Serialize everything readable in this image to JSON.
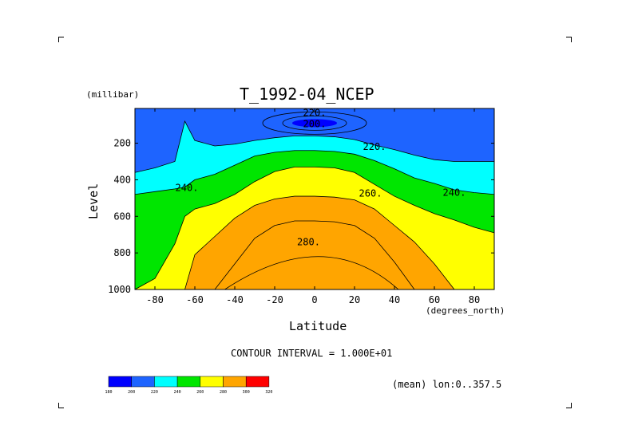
{
  "chart_data": {
    "type": "heatmap",
    "title": "T_1992-04_NCEP",
    "xlabel": "Latitude",
    "ylabel": "Level",
    "x_units": "(degrees_north)",
    "y_units": "(millibar)",
    "xlim": [
      -90,
      90
    ],
    "ylim": [
      1000,
      10
    ],
    "y_reversed": true,
    "x_ticks": [
      "-80",
      "-60",
      "-40",
      "-20",
      "0",
      "20",
      "40",
      "60",
      "80"
    ],
    "y_ticks": [
      "200",
      "400",
      "600",
      "800",
      "1000"
    ],
    "contour_interval_text": "CONTOUR INTERVAL = 1.000E+01",
    "footer_text": "(mean) lon:0..357.5",
    "contour_labels": [
      {
        "text": "220.",
        "lat": 0,
        "level": 35
      },
      {
        "text": "200.",
        "lat": 0,
        "level": 95
      },
      {
        "text": "220.",
        "lat": 30,
        "level": 220
      },
      {
        "text": "240.",
        "lat": -64,
        "level": 445
      },
      {
        "text": "260.",
        "lat": 28,
        "level": 475
      },
      {
        "text": "240.",
        "lat": 70,
        "level": 470
      },
      {
        "text": "280.",
        "lat": -3,
        "level": 740
      }
    ],
    "colorbar": {
      "labels": [
        "180",
        "200",
        "220",
        "240",
        "260",
        "280",
        "300",
        "320"
      ],
      "colors": [
        "#0000ff",
        "#1e64ff",
        "#00ffff",
        "#00e600",
        "#ffff00",
        "#ffa500",
        "#ff0000"
      ]
    },
    "levels": [
      200,
      220,
      240,
      260,
      280,
      300
    ],
    "bands": {
      "x": [
        -90,
        -80,
        -70,
        -65,
        -60,
        -50,
        -40,
        -30,
        -20,
        -10,
        0,
        10,
        20,
        30,
        40,
        50,
        60,
        70,
        80,
        90
      ],
      "fill": {
        "200": [
          125,
          125,
          125,
          125,
          125,
          125,
          125,
          125,
          125,
          90,
          90,
          90,
          125,
          125,
          125,
          125,
          125,
          125,
          125,
          125
        ],
        "220": [
          360,
          335,
          300,
          80,
          185,
          215,
          205,
          185,
          170,
          160,
          160,
          165,
          180,
          210,
          235,
          265,
          290,
          300,
          300,
          300
        ],
        "240": [
          480,
          465,
          450,
          440,
          400,
          370,
          320,
          270,
          250,
          240,
          240,
          245,
          260,
          295,
          340,
          390,
          420,
          455,
          470,
          480
        ],
        "260": [
          1000,
          940,
          750,
          600,
          560,
          530,
          480,
          410,
          355,
          330,
          330,
          335,
          360,
          425,
          490,
          540,
          585,
          620,
          660,
          690
        ],
        "280": [
          1000,
          1000,
          1000,
          1000,
          810,
          710,
          610,
          540,
          505,
          490,
          490,
          495,
          510,
          560,
          650,
          740,
          860,
          1000,
          1000,
          1000
        ],
        "300": [
          1000,
          1000,
          1000,
          1000,
          1000,
          1000,
          860,
          720,
          650,
          625,
          625,
          630,
          650,
          720,
          850,
          1000,
          1000,
          1000,
          1000,
          1000
        ]
      }
    }
  }
}
